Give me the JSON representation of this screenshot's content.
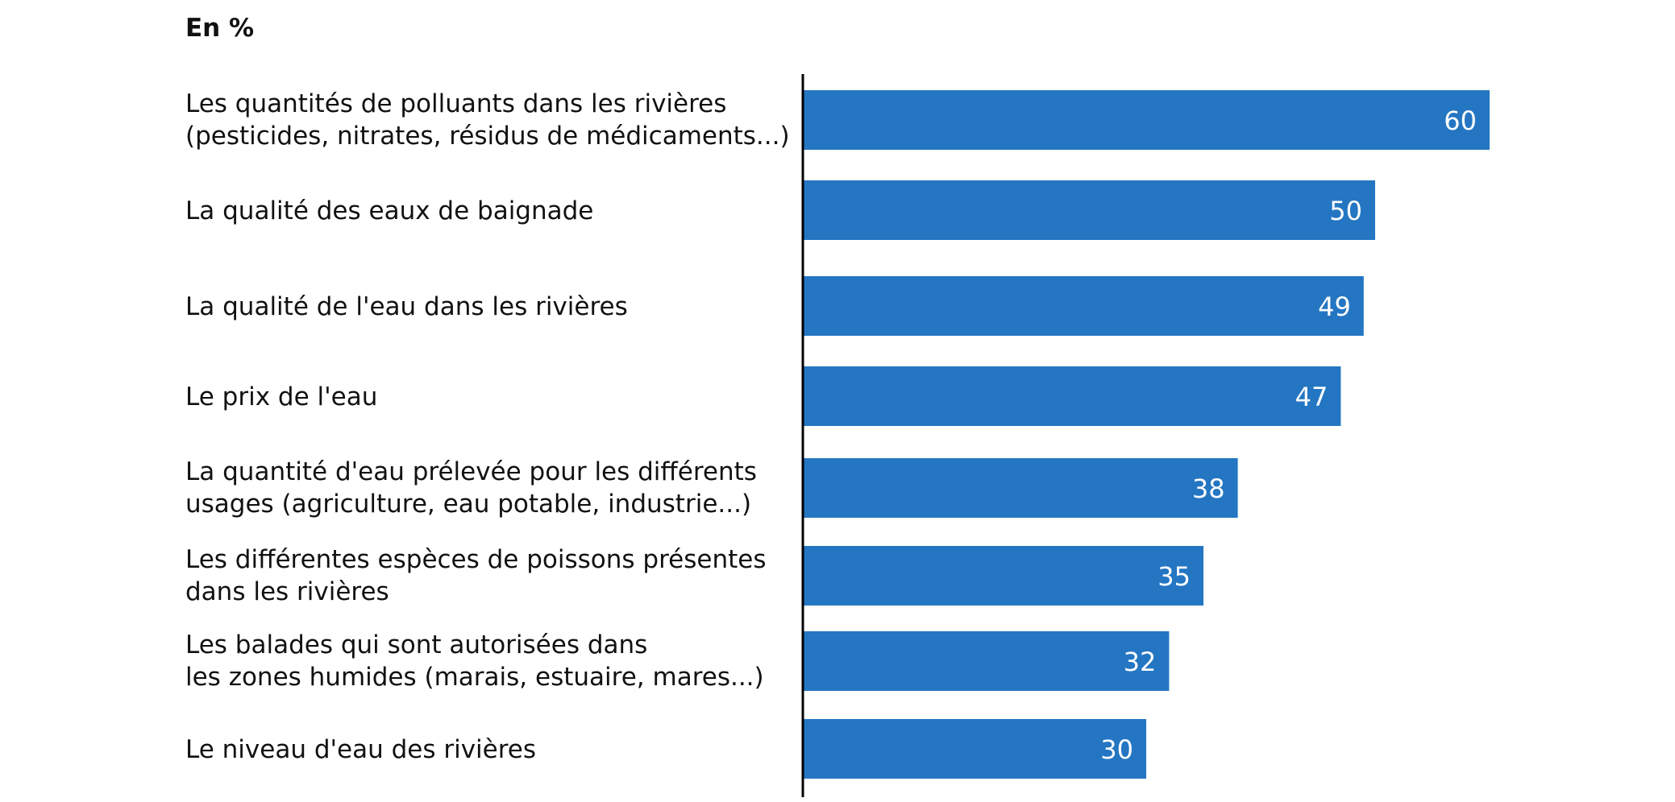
{
  "chart_data": {
    "type": "bar",
    "orientation": "horizontal",
    "unit_label": "En %",
    "categories": [
      [
        "Les quantités de polluants dans les rivières",
        "(pesticides, nitrates, résidus de médicaments...)"
      ],
      [
        "La qualité des eaux de baignade"
      ],
      [
        "La qualité de l'eau dans les rivières"
      ],
      [
        "Le prix de l'eau"
      ],
      [
        "La quantité d'eau prélevée pour les différents",
        "usages (agriculture, eau potable, industrie...)"
      ],
      [
        "Les différentes espèces de poissons présentes",
        "dans les rivières"
      ],
      [
        "Les balades qui sont autorisées dans",
        "les zones humides (marais, estuaire, mares...)"
      ],
      [
        "Le niveau d'eau des rivières"
      ]
    ],
    "values": [
      60,
      50,
      49,
      47,
      38,
      35,
      32,
      30
    ],
    "value_labels": [
      "60",
      "50",
      "49",
      "47",
      "38",
      "35",
      "32",
      "30"
    ],
    "xlim": [
      0,
      60
    ],
    "bar_color": "#2476c2",
    "value_label_color": "#ffffff",
    "axis_color": "#000000",
    "grid": false,
    "legend": "none"
  }
}
